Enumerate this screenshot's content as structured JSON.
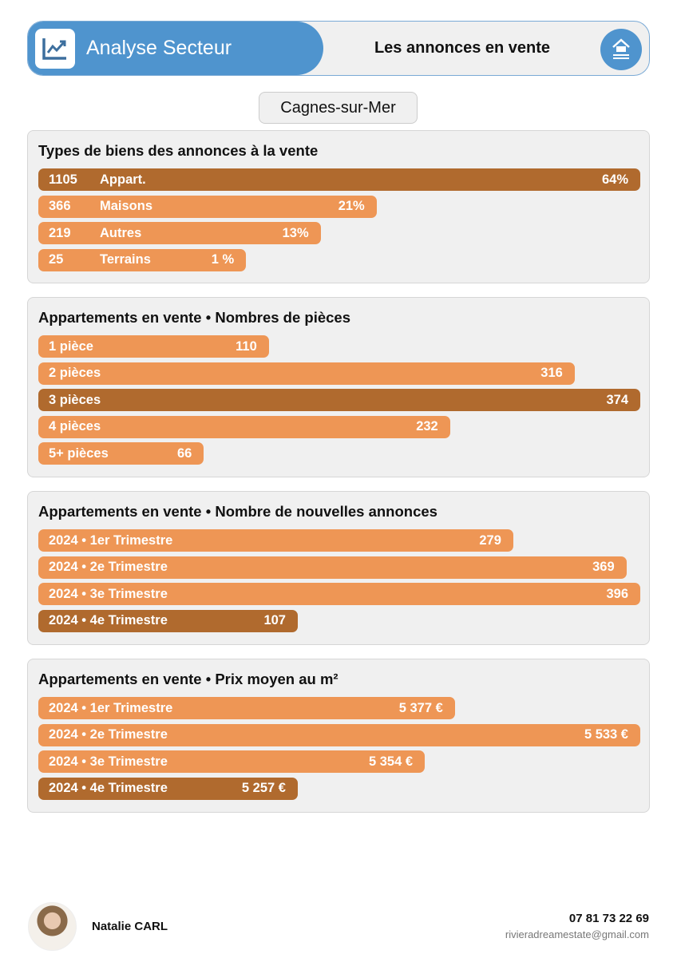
{
  "header": {
    "title": "Analyse Secteur",
    "subtitle": "Les annonces en vente",
    "logo_icon": "chart-trend-icon",
    "home_icon": "home-icon"
  },
  "city": "Cagnes-sur-Mer",
  "colors": {
    "accent": "#4f94ce",
    "bar": "#ee9655",
    "bar_highlight": "#b06a2e"
  },
  "cards": [
    {
      "title": "Types de biens des annonces à la vente",
      "style": "num-label",
      "rows": [
        {
          "num": "1105",
          "label": "Appart.",
          "value": "64%",
          "fill": 1.0,
          "highlight": true
        },
        {
          "num": "366",
          "label": "Maisons",
          "value": "21%",
          "fill": 0.562,
          "highlight": false
        },
        {
          "num": "219",
          "label": "Autres",
          "value": "13%",
          "fill": 0.469,
          "highlight": false
        },
        {
          "num": "25",
          "label": "Terrains",
          "value": "1 %",
          "fill": 0.345,
          "highlight": false
        }
      ]
    },
    {
      "title": "Appartements en vente • Nombres de pièces",
      "rows": [
        {
          "label": "1 pièce",
          "value": "110",
          "fill": 0.383,
          "highlight": false
        },
        {
          "label": "2 pièces",
          "value": "316",
          "fill": 0.891,
          "highlight": false
        },
        {
          "label": "3 pièces",
          "value": "374",
          "fill": 1.0,
          "highlight": true
        },
        {
          "label": "4 pièces",
          "value": "232",
          "fill": 0.684,
          "highlight": false
        },
        {
          "label": "5+ pièces",
          "value": "66",
          "fill": 0.275,
          "highlight": false
        }
      ]
    },
    {
      "title": "Appartements en vente • Nombre de nouvelles annonces",
      "rows": [
        {
          "label": "2024 • 1er Trimestre",
          "value": "279",
          "fill": 0.789,
          "highlight": false
        },
        {
          "label": "2024 • 2e Trimestre",
          "value": "369",
          "fill": 0.977,
          "highlight": false
        },
        {
          "label": "2024 • 3e Trimestre",
          "value": "396",
          "fill": 1.0,
          "highlight": false
        },
        {
          "label": "2024 • 4e Trimestre",
          "value": "107",
          "fill": 0.431,
          "highlight": true
        }
      ]
    },
    {
      "title": "Appartements en vente • Prix moyen au m²",
      "rows": [
        {
          "label": "2024 • 1er Trimestre",
          "value": "5 377 €",
          "fill": 0.692,
          "highlight": false
        },
        {
          "label": "2024 • 2e Trimestre",
          "value": "5 533 €",
          "fill": 1.0,
          "highlight": false
        },
        {
          "label": "2024 • 3e Trimestre",
          "value": "5 354 €",
          "fill": 0.642,
          "highlight": false
        },
        {
          "label": "2024 • 4e Trimestre",
          "value": "5 257 €",
          "fill": 0.431,
          "highlight": true
        }
      ]
    }
  ],
  "footer": {
    "name": "Natalie CARL",
    "phone": "07 81 73 22 69",
    "email": "rivieradreamestate@gmail.com"
  }
}
